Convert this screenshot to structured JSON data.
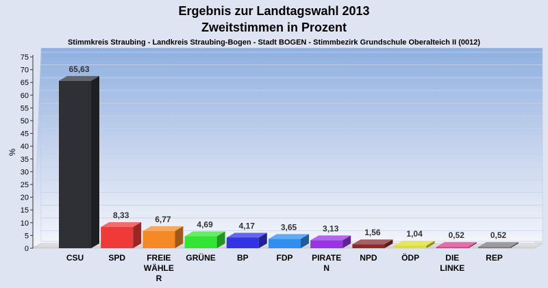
{
  "chart_data": {
    "type": "bar",
    "title": "Ergebnis zur Landtagswahl 2013",
    "subtitle": "Zweitstimmen in Prozent",
    "caption": "Stimmkreis Straubing - Landkreis Straubing-Bogen - Stadt BOGEN - Stimmbezirk Grundschule Oberalteich II (0012)",
    "xlabel": "",
    "ylabel": "%",
    "ylim": [
      0,
      75
    ],
    "ytick_step": 5,
    "grid": true,
    "categories": [
      [
        "CSU"
      ],
      [
        "SPD"
      ],
      [
        "FREIE",
        "WÄHLE",
        "R"
      ],
      [
        "GRÜNE"
      ],
      [
        "BP"
      ],
      [
        "FDP"
      ],
      [
        "PIRATE",
        "N"
      ],
      [
        "NPD"
      ],
      [
        "ÖDP"
      ],
      [
        "DIE",
        "LINKE"
      ],
      [
        "REP"
      ]
    ],
    "values": [
      65.63,
      8.33,
      6.77,
      4.69,
      4.17,
      3.65,
      3.13,
      1.56,
      1.04,
      0.52,
      0.52
    ],
    "value_labels": [
      "65,63",
      "8,33",
      "6,77",
      "4,69",
      "4,17",
      "3,65",
      "3,13",
      "1,56",
      "1,04",
      "0,52",
      "0,52"
    ],
    "colors": [
      "#2e3035",
      "#f03a3a",
      "#f58a25",
      "#33e633",
      "#3333e6",
      "#2e8ff0",
      "#9933e6",
      "#8a2a2a",
      "#dede2e",
      "#e33a8c",
      "#7a7a7a"
    ]
  }
}
